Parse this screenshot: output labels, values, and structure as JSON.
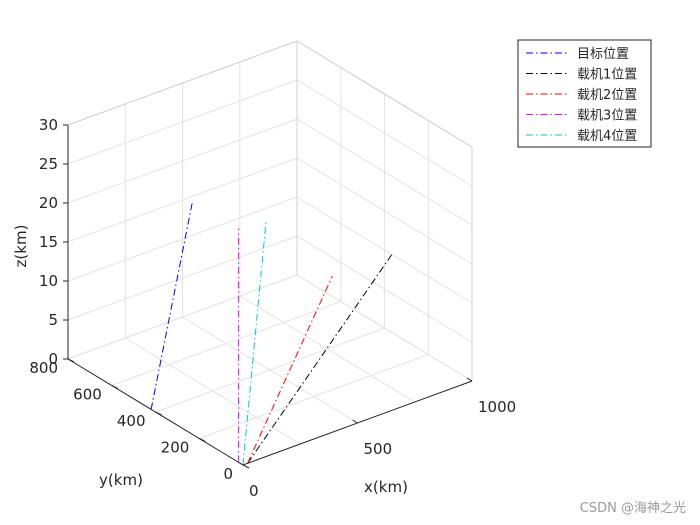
{
  "chart_data": {
    "type": "line3d",
    "title": "",
    "xlabel": "x(km)",
    "ylabel": "y(km)",
    "zlabel": "z(km)",
    "xlim": [
      0,
      1000
    ],
    "ylim": [
      0,
      800
    ],
    "zlim": [
      0,
      30
    ],
    "xticks": [
      0,
      500,
      1000
    ],
    "yticks": [
      0,
      200,
      400,
      600,
      800
    ],
    "zticks": [
      0,
      5,
      10,
      15,
      20,
      25,
      30
    ],
    "grid": true,
    "legend_position": "top-right",
    "series": [
      {
        "name": "目标位置",
        "color": "#0000ff",
        "style": "dash-dot",
        "start": [
          0,
          420,
          0
        ],
        "end": [
          0,
          230,
          30
        ]
      },
      {
        "name": "载机1位置",
        "color": "#000000",
        "style": "dash-dot",
        "start": [
          20,
          0,
          0
        ],
        "end": [
          650,
          0,
          20
        ]
      },
      {
        "name": "载机2位置",
        "color": "#ff0000",
        "style": "dash-dot",
        "start": [
          20,
          0,
          0
        ],
        "end": [
          390,
          0,
          20
        ]
      },
      {
        "name": "载机3位置",
        "color": "#ff00ff",
        "style": "dash-dot",
        "start": [
          0,
          20,
          0
        ],
        "end": [
          0,
          20,
          30
        ]
      },
      {
        "name": "载机4位置",
        "color": "#00cccc",
        "style": "dash-dot",
        "start": [
          0,
          0,
          0
        ],
        "end": [
          100,
          0,
          30
        ]
      }
    ]
  },
  "watermark": "CSDN @海神之光"
}
